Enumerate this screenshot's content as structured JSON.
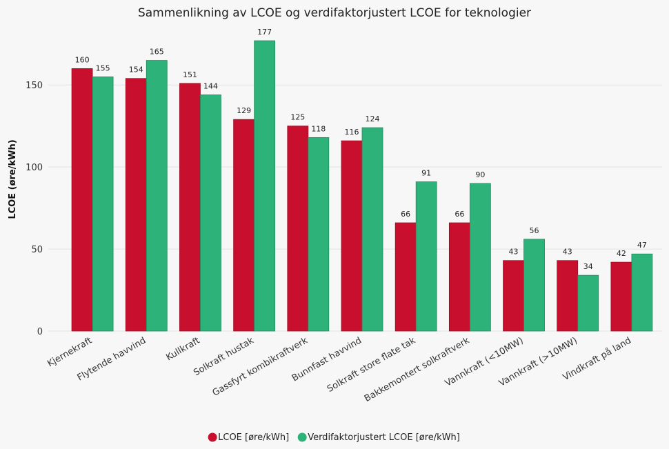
{
  "chart_data": {
    "type": "bar",
    "title": "Sammenlikning av LCOE og verdifaktorjustert LCOE for teknologier",
    "xlabel": "",
    "ylabel": "LCOE (øre/kWh)",
    "ylim": [
      0,
      185
    ],
    "yticks": [
      0,
      50,
      100,
      150
    ],
    "grid": true,
    "legend_position": "bottom-center",
    "categories": [
      "Kjernekraft",
      "Flytende havvind",
      "Kullkraft",
      "Solkraft hustak",
      "Gassfyrt kombikraftverk",
      "Bunnfast havvind",
      "Solkraft store flate tak",
      "Bakkemontert solkraftverk",
      "Vannkraft (<10MW)",
      "Vannkraft (>10MW)",
      "Vindkraft på land"
    ],
    "series": [
      {
        "name": "LCOE [øre/kWh]",
        "color": "#c8102e",
        "values": [
          160,
          154,
          151,
          129,
          125,
          116,
          66,
          66,
          43,
          43,
          42
        ]
      },
      {
        "name": "Verdifaktorjustert LCOE [øre/kWh]",
        "color": "#2db37a",
        "values": [
          155,
          165,
          144,
          177,
          118,
          124,
          91,
          90,
          56,
          34,
          47
        ]
      }
    ],
    "data_labels": [
      [
        "160",
        "154",
        "151",
        "129",
        "125",
        "116",
        "66",
        "66",
        "43",
        "43",
        "42"
      ],
      [
        "155",
        "165",
        "144",
        "177",
        "118",
        "124",
        "91",
        "90",
        "56",
        "34",
        "47"
      ]
    ]
  }
}
